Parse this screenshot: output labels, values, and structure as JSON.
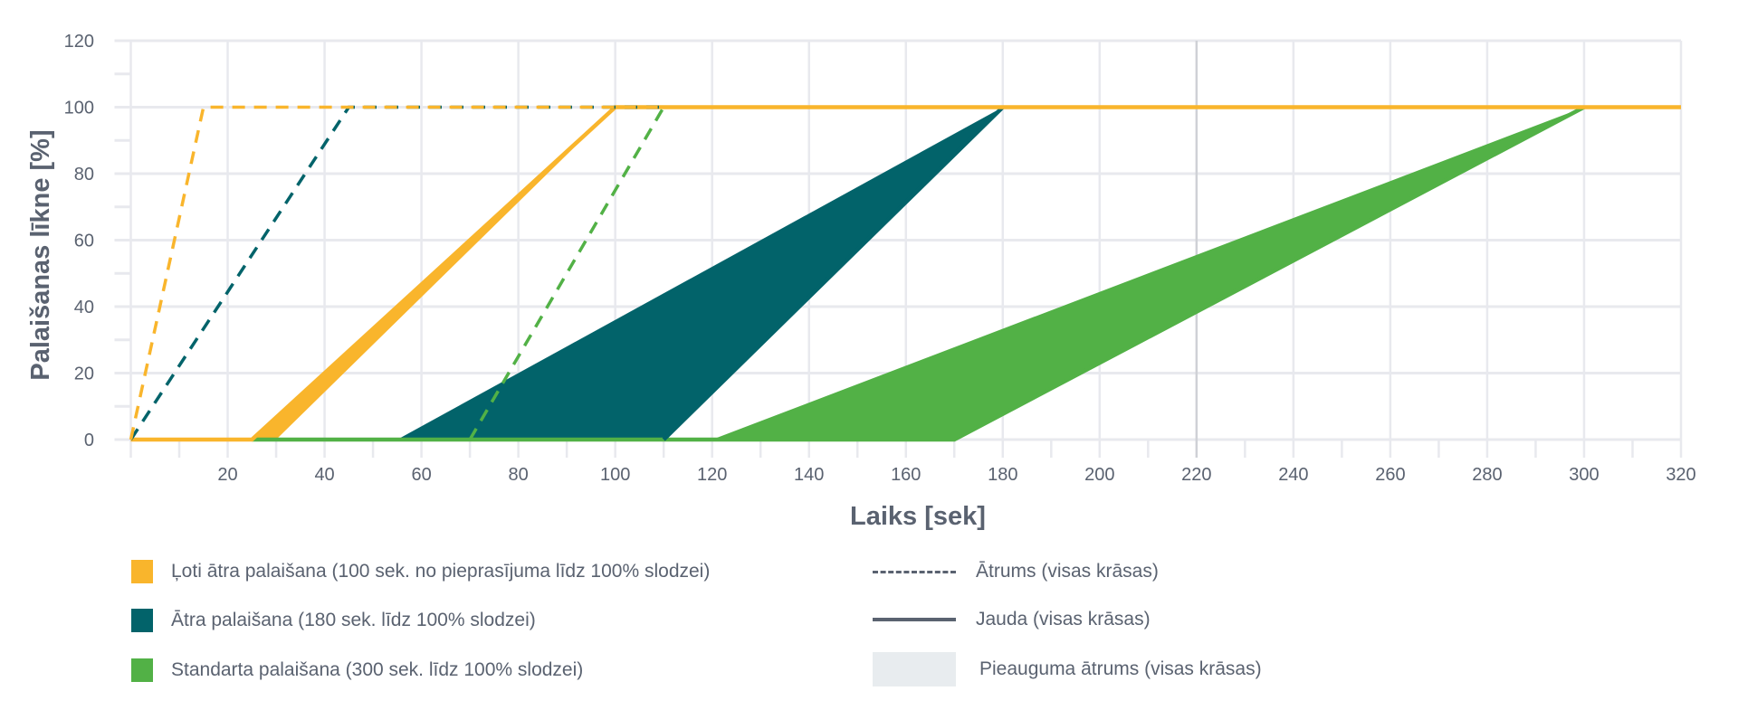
{
  "chart_data": {
    "type": "area",
    "xlabel": "Laiks [sek]",
    "ylabel": "Palaišanas līkne [%]",
    "xlim": [
      0,
      320
    ],
    "ylim": [
      0,
      120
    ],
    "x_ticks": [
      20,
      40,
      60,
      80,
      100,
      120,
      140,
      160,
      180,
      200,
      220,
      240,
      260,
      280,
      300,
      320
    ],
    "y_ticks": [
      0,
      20,
      40,
      60,
      80,
      100,
      120
    ],
    "grid": true,
    "colors": {
      "very_fast": "#F9B52C",
      "fast": "#02636A",
      "standard": "#52B146",
      "grid": "#E8E9EE",
      "ramp_band": "#E8ECEF",
      "text": "#5A6270"
    },
    "series": [
      {
        "name": "Ļoti ātra palaišana (100 sek. no pieprasījuma līdz 100% slodzei)",
        "color": "#F9B52C",
        "speed_dashed": [
          [
            0,
            0
          ],
          [
            15,
            100
          ],
          [
            110,
            100
          ]
        ],
        "power_band": [
          [
            25,
            0
          ],
          [
            30,
            0
          ],
          [
            100,
            100
          ]
        ],
        "power_line": [
          [
            0,
            0
          ],
          [
            25,
            0
          ],
          [
            100,
            100
          ],
          [
            320,
            100
          ]
        ]
      },
      {
        "name": "Ātra palaišana (180 sek. līdz 100% slodzei)",
        "color": "#02636A",
        "speed_dashed": [
          [
            0,
            0
          ],
          [
            45,
            100
          ],
          [
            110,
            100
          ]
        ],
        "power_band": [
          [
            55,
            0
          ],
          [
            110,
            0
          ],
          [
            180,
            100
          ]
        ],
        "power_line": [
          [
            110,
            0
          ],
          [
            180,
            100
          ]
        ]
      },
      {
        "name": "Standarta palaišana (300 sek. līdz 100% slodzei)",
        "color": "#52B146",
        "speed_dashed": [
          [
            70,
            0
          ],
          [
            110,
            100
          ]
        ],
        "power_band": [
          [
            120,
            0
          ],
          [
            170,
            0
          ],
          [
            300,
            100
          ]
        ],
        "power_line": [
          [
            25,
            0
          ],
          [
            170,
            0
          ],
          [
            300,
            100
          ]
        ]
      }
    ],
    "legend_placement": "bottom"
  },
  "legend": {
    "very_fast": "Ļoti ātra palaišana (100 sek. no pieprasījuma līdz 100% slodzei)",
    "fast": "Ātra palaišana (180 sek. līdz 100% slodzei)",
    "standard": "Standarta palaišana (300 sek. līdz 100% slodzei)",
    "speed": "Ātrums (visas krāsas)",
    "power": "Jauda (visas krāsas)",
    "ramp": "Pieauguma ātrums (visas krāsas)"
  }
}
